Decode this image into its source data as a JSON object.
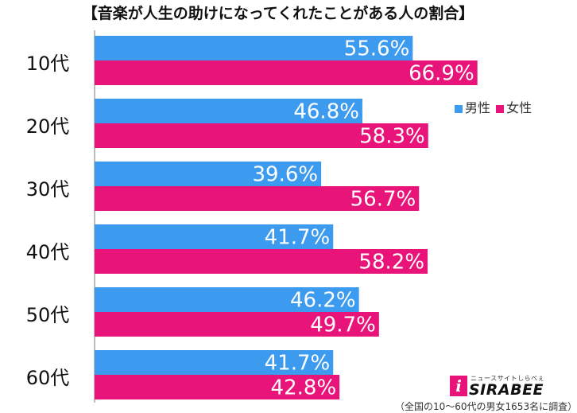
{
  "title": "【音楽が人生の助けになってくれたことがある人の割合】",
  "footnote": "（全国の10〜60代の男女1653名に調査）",
  "logo": {
    "mark": "i",
    "subtitle": "ニュースサイトしらべぇ",
    "text": "SIRABEE"
  },
  "legend": [
    {
      "label": "男性",
      "color": "#3d9bef"
    },
    {
      "label": "女性",
      "color": "#e8147a"
    }
  ],
  "colors": {
    "male": "#3d9bef",
    "female": "#e8147a"
  },
  "chart_data": {
    "type": "bar",
    "orientation": "horizontal",
    "title": "【音楽が人生の助けになってくれたことがある人の割合】",
    "categories": [
      "10代",
      "20代",
      "30代",
      "40代",
      "50代",
      "60代"
    ],
    "series": [
      {
        "name": "男性",
        "values": [
          55.6,
          46.8,
          39.6,
          41.7,
          46.2,
          41.7
        ]
      },
      {
        "name": "女性",
        "values": [
          66.9,
          58.3,
          56.7,
          58.2,
          49.7,
          42.8
        ]
      }
    ],
    "value_suffix": "%",
    "xlim": [
      0,
      100
    ],
    "grid": false,
    "legend_position": "top-right"
  }
}
